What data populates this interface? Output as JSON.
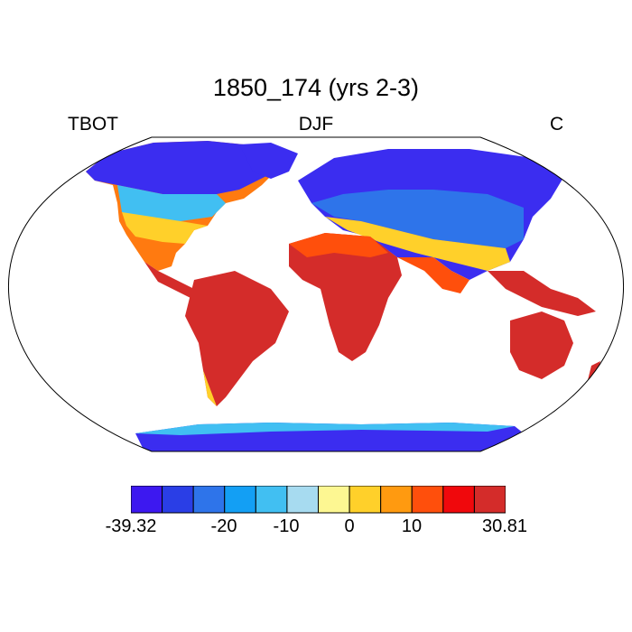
{
  "title": "1850_174 (yrs 2-3)",
  "left_label": "TBOT",
  "center_label": "DJF",
  "right_label": "C",
  "colorbar": {
    "colors": [
      "#3d18f0",
      "#2a3ee6",
      "#2e74ea",
      "#139ff4",
      "#41bff2",
      "#a7dbf0",
      "#fdf792",
      "#ffd02a",
      "#ff9a10",
      "#ff4f0c",
      "#f0080c",
      "#d42c2a"
    ],
    "tick_labels": [
      "-39.32",
      "-20",
      "-10",
      "0",
      "10",
      "30.81"
    ]
  },
  "map": {
    "projection": "robinson",
    "land_fill_color": "#d42c2a",
    "ocean_color": "#ffffff"
  }
}
